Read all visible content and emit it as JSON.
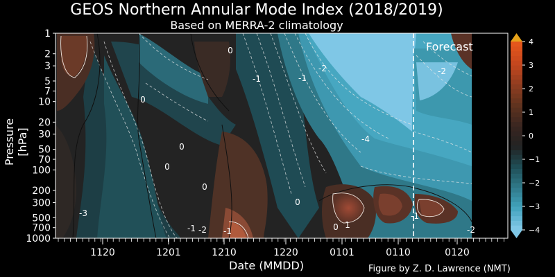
{
  "chart_data": {
    "type": "heatmap",
    "title": "GEOS Northern Annular Mode Index (2018/2019)",
    "subtitle": "Based on MERRA-2 climatology",
    "xlabel": "Date (MMDD)",
    "ylabel": "Pressure [hPa]",
    "x_ticks": [
      "1120",
      "1201",
      "1210",
      "1220",
      "0101",
      "0110",
      "0120"
    ],
    "y_ticks": [
      1,
      2,
      3,
      5,
      7,
      10,
      20,
      30,
      50,
      70,
      100,
      200,
      300,
      500,
      700,
      1000
    ],
    "y_scale": "log",
    "y_inverted": true,
    "colorbar": {
      "ticks": [
        4,
        3,
        2,
        1,
        0,
        -1,
        -2,
        -3,
        -4
      ],
      "range": [
        -4,
        4
      ],
      "colors": [
        "#7fc7e6",
        "#41a2bc",
        "#2f7888",
        "#1f4d55",
        "#222222",
        "#3a2620",
        "#60331f",
        "#8f3d20",
        "#c4461e",
        "#e4571c",
        "#e6a21a"
      ]
    },
    "contour_labels": [
      "0",
      "0",
      "0",
      "0",
      "0",
      "0",
      "0",
      "-1",
      "-1",
      "-2",
      "-4",
      "-3",
      "-1",
      "-2",
      "-1",
      "1",
      "-1",
      "-2",
      "-2"
    ],
    "annotation": "Forecast",
    "forecast_start": "0111"
  },
  "credit": "Figure by Z. D. Lawrence (NMT)"
}
